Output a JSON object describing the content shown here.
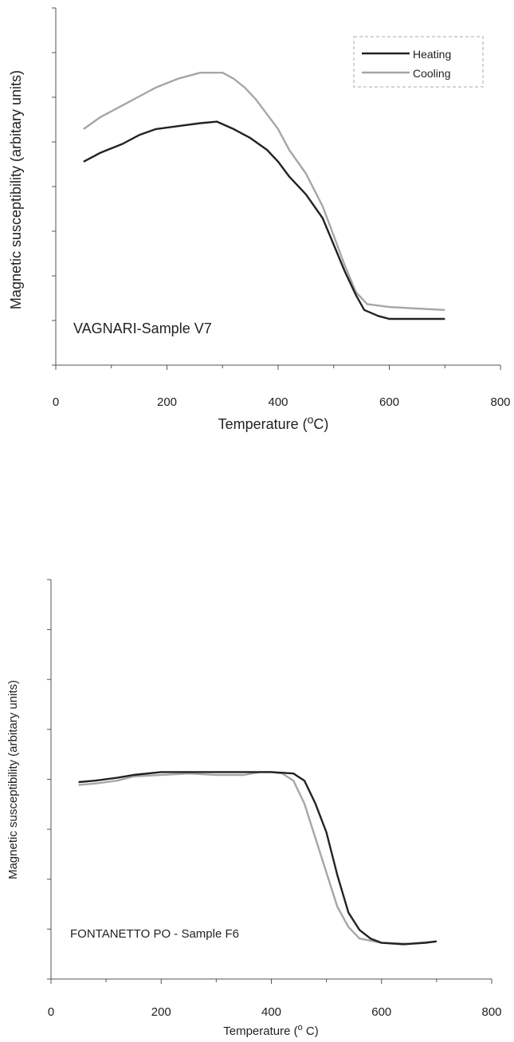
{
  "chart_data": [
    {
      "type": "line",
      "annotation": "VAGNARI-Sample V7",
      "xlabel_main": "Temperature (",
      "xlabel_sup": "o",
      "xlabel_end": "C)",
      "ylabel": "Magnetic susceptibility (arbitary units)",
      "xlim": [
        0,
        800
      ],
      "x_ticks": [
        0,
        200,
        400,
        600,
        800
      ],
      "legend": {
        "position": "top-right",
        "entries": [
          "Heating",
          "Cooling"
        ]
      },
      "colors": {
        "Heating": "#222222",
        "Cooling": "#a6a6a6"
      },
      "series": [
        {
          "name": "Heating",
          "x": [
            50,
            80,
            120,
            150,
            180,
            220,
            260,
            290,
            320,
            350,
            380,
            400,
            420,
            450,
            480,
            500,
            520,
            540,
            555,
            580,
            600,
            640,
            680,
            700
          ],
          "y": [
            0.53,
            0.56,
            0.59,
            0.62,
            0.64,
            0.65,
            0.66,
            0.665,
            0.64,
            0.61,
            0.57,
            0.53,
            0.48,
            0.42,
            0.34,
            0.25,
            0.16,
            0.08,
            0.03,
            0.01,
            0.0,
            0.0,
            0.0,
            0.0
          ]
        },
        {
          "name": "Cooling",
          "x": [
            50,
            80,
            120,
            150,
            180,
            220,
            260,
            300,
            320,
            340,
            360,
            380,
            400,
            420,
            450,
            480,
            500,
            520,
            540,
            560,
            600,
            650,
            700
          ],
          "y": [
            0.64,
            0.68,
            0.72,
            0.75,
            0.78,
            0.81,
            0.83,
            0.83,
            0.81,
            0.78,
            0.74,
            0.69,
            0.64,
            0.57,
            0.49,
            0.38,
            0.28,
            0.18,
            0.09,
            0.05,
            0.04,
            0.035,
            0.03
          ]
        }
      ]
    },
    {
      "type": "line",
      "annotation": "FONTANETTO PO - Sample F6",
      "xlabel_main": "Temperature (",
      "xlabel_sup": "o",
      "xlabel_end": " C)",
      "ylabel": "Magnetic susceptibility (arbitary units)",
      "xlim": [
        0,
        800
      ],
      "x_ticks": [
        0,
        200,
        400,
        600,
        800
      ],
      "colors": {
        "Heating": "#222222",
        "Cooling": "#a6a6a6"
      },
      "series": [
        {
          "name": "Heating",
          "x": [
            50,
            80,
            120,
            150,
            200,
            250,
            300,
            350,
            400,
            440,
            460,
            480,
            500,
            520,
            540,
            560,
            580,
            600,
            640,
            680,
            700
          ],
          "y": [
            0.575,
            0.58,
            0.59,
            0.6,
            0.61,
            0.61,
            0.61,
            0.61,
            0.61,
            0.605,
            0.58,
            0.5,
            0.4,
            0.25,
            0.12,
            0.06,
            0.03,
            0.015,
            0.01,
            0.015,
            0.02
          ]
        },
        {
          "name": "Cooling",
          "x": [
            50,
            80,
            120,
            150,
            200,
            250,
            300,
            350,
            380,
            400,
            420,
            440,
            460,
            480,
            500,
            520,
            540,
            560,
            600,
            650,
            700
          ],
          "y": [
            0.565,
            0.57,
            0.58,
            0.595,
            0.6,
            0.605,
            0.6,
            0.6,
            0.61,
            0.61,
            0.605,
            0.58,
            0.5,
            0.38,
            0.26,
            0.14,
            0.07,
            0.03,
            0.015,
            0.012,
            0.02
          ]
        }
      ]
    }
  ]
}
